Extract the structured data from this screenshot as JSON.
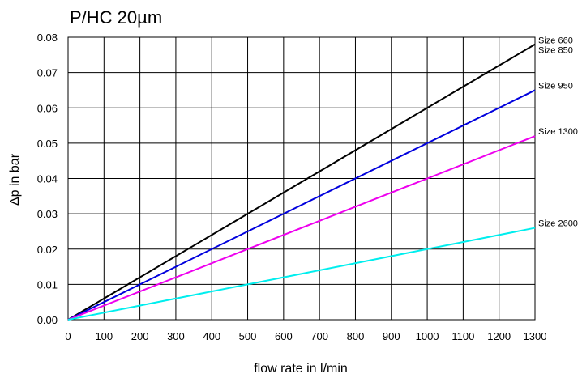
{
  "chart_data": {
    "type": "line",
    "title": "P/HC 20µm",
    "xlabel": "flow rate in l/min",
    "ylabel": "Δp in bar",
    "xlim": [
      0,
      1300
    ],
    "ylim": [
      0,
      0.08
    ],
    "x_ticks": [
      "0",
      "100",
      "200",
      "300",
      "400",
      "500",
      "600",
      "700",
      "800",
      "900",
      "1000",
      "1100",
      "1200",
      "1300"
    ],
    "y_ticks": [
      "0.00",
      "0.01",
      "0.02",
      "0.03",
      "0.04",
      "0.05",
      "0.06",
      "0.07",
      "0.08"
    ],
    "grid": true,
    "legend": "labels at right end of lines",
    "series": [
      {
        "name": "Size 660",
        "name2": "Size 850",
        "color": "#000000",
        "x": [
          0,
          1300
        ],
        "values": [
          0,
          0.078
        ]
      },
      {
        "name": "Size 950",
        "color": "#0000dd",
        "x": [
          0,
          1300
        ],
        "values": [
          0,
          0.065
        ]
      },
      {
        "name": "Size 1300",
        "color": "#ee00ee",
        "x": [
          0,
          1300
        ],
        "values": [
          0,
          0.052
        ]
      },
      {
        "name": "Size 2600",
        "color": "#00eeee",
        "x": [
          0,
          1300
        ],
        "values": [
          0,
          0.026
        ]
      }
    ]
  }
}
